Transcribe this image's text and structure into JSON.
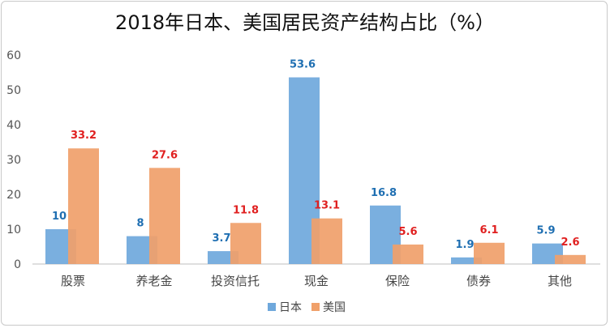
{
  "chart_data": {
    "type": "bar",
    "title": "2018年日本、美国居民资产结构占比（%）",
    "categories": [
      "股票",
      "养老金",
      "投资信托",
      "现金",
      "保险",
      "债券",
      "其他"
    ],
    "series": [
      {
        "name": "日本",
        "values": [
          10,
          8,
          3.7,
          53.6,
          16.8,
          1.9,
          5.9
        ],
        "color": "#6fa8dc",
        "label_color": "#1f6fb2"
      },
      {
        "name": "美国",
        "values": [
          33.2,
          27.6,
          11.8,
          13.1,
          5.6,
          6.1,
          2.6
        ],
        "color": "#f0a06a",
        "label_color": "#e02020"
      }
    ],
    "y_ticks": [
      0,
      10,
      20,
      30,
      40,
      50,
      60
    ],
    "ylim": [
      0,
      60
    ],
    "grid": false,
    "legend_position": "bottom-center"
  }
}
